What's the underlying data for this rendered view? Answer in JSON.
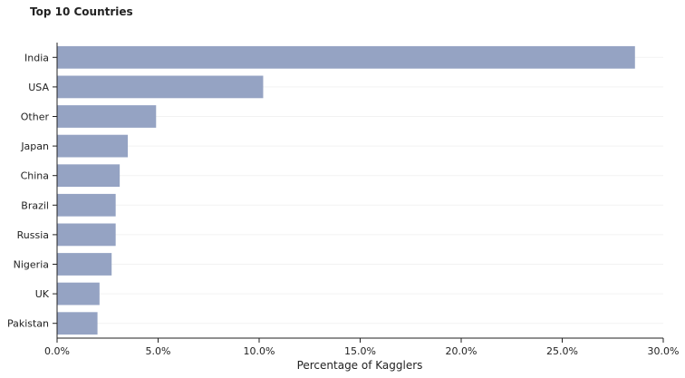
{
  "chart_data": {
    "type": "bar",
    "orientation": "horizontal",
    "title": "Top 10 Countries",
    "xlabel": "Percentage of Kagglers",
    "ylabel": "",
    "xlim": [
      0,
      30
    ],
    "x_ticks": [
      0,
      5,
      10,
      15,
      20,
      25,
      30
    ],
    "x_tick_labels": [
      "0.0%",
      "5.0%",
      "10.0%",
      "15.0%",
      "20.0%",
      "25.0%",
      "30.0%"
    ],
    "categories": [
      "India",
      "USA",
      "Other",
      "Japan",
      "China",
      "Brazil",
      "Russia",
      "Nigeria",
      "UK",
      "Pakistan"
    ],
    "values": [
      28.6,
      10.2,
      4.9,
      3.5,
      3.1,
      2.9,
      2.9,
      2.7,
      2.1,
      2.0
    ],
    "bar_color": "#95a3c3",
    "grid": "horizontal-faint"
  }
}
